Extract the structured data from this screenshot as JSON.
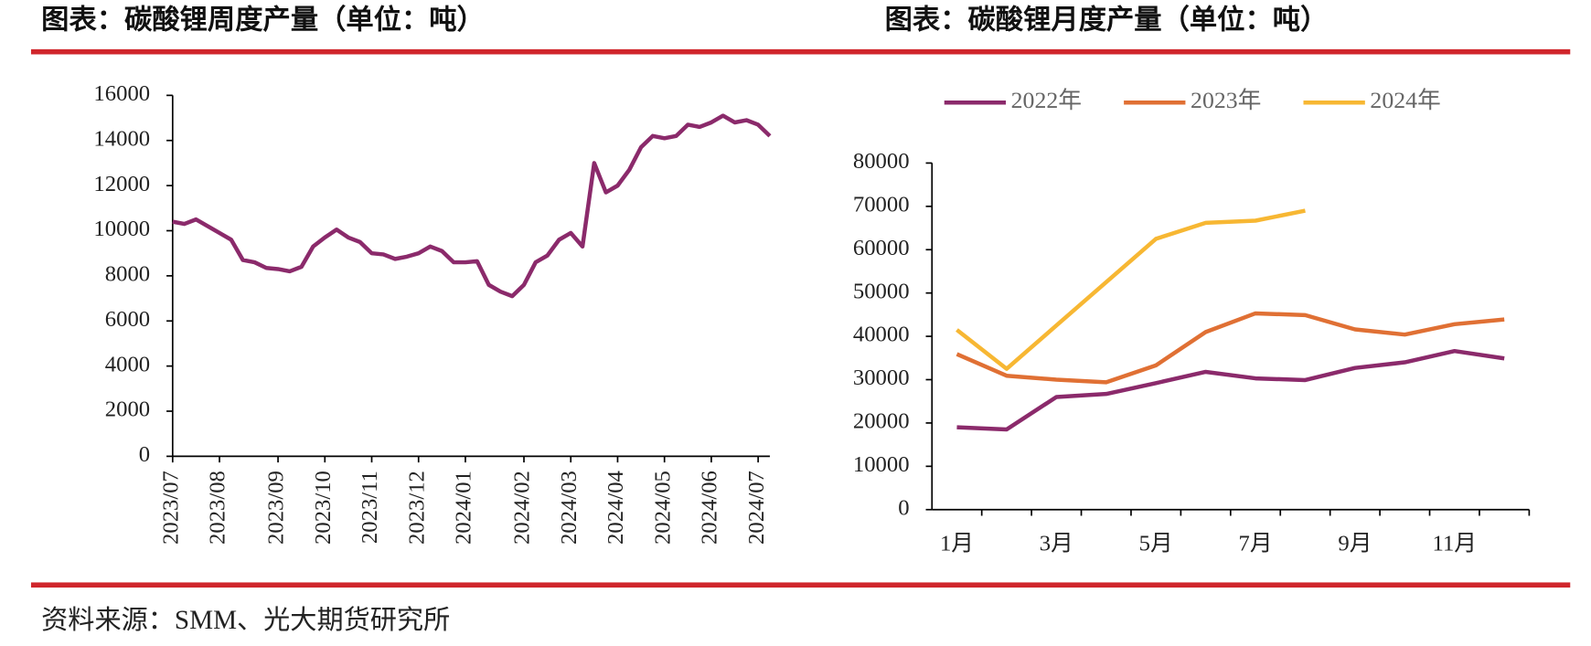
{
  "chart_data": [
    {
      "type": "line",
      "title": "图表：碳酸锂周度产量（单位：吨）",
      "categories": [
        "2023/07",
        null,
        null,
        null,
        "2023/08",
        null,
        null,
        null,
        null,
        "2023/09",
        null,
        null,
        null,
        "2023/10",
        null,
        null,
        null,
        "2023/11",
        null,
        null,
        null,
        "2023/12",
        null,
        null,
        null,
        "2024/01",
        null,
        null,
        null,
        null,
        "2024/02",
        null,
        null,
        null,
        "2024/03",
        null,
        null,
        null,
        "2024/04",
        null,
        null,
        null,
        "2024/05",
        null,
        null,
        null,
        "2024/06",
        null,
        null,
        null,
        "2024/07",
        null
      ],
      "series": [
        {
          "name": null,
          "color": "#8b2a6b",
          "values": [
            10400,
            10300,
            10500,
            10200,
            9900,
            9600,
            8700,
            8600,
            8350,
            8300,
            8200,
            8400,
            9300,
            9700,
            10050,
            9700,
            9500,
            9000,
            8950,
            8750,
            8850,
            9000,
            9300,
            9100,
            8600,
            8600,
            8650,
            7600,
            7300,
            7100,
            7600,
            8600,
            8900,
            9600,
            9900,
            9300,
            13000,
            11700,
            12000,
            12700,
            13700,
            14200,
            14100,
            14200,
            14700,
            14600,
            14800,
            15100,
            14800,
            14900,
            14700,
            14200
          ]
        }
      ],
      "ylim": [
        0,
        16000
      ],
      "yticks": [
        0,
        2000,
        4000,
        6000,
        8000,
        10000,
        12000,
        14000,
        16000
      ]
    },
    {
      "type": "line",
      "title": "图表：碳酸锂月度产量（单位：吨）",
      "categories": [
        "1月",
        null,
        "3月",
        null,
        "5月",
        null,
        "7月",
        null,
        "9月",
        null,
        "11月",
        null
      ],
      "series": [
        {
          "name": "2022年",
          "color": "#8b2a6b",
          "values": [
            19000,
            18500,
            26000,
            26700,
            29200,
            31800,
            30300,
            29900,
            32700,
            34000,
            36600,
            34900
          ]
        },
        {
          "name": "2023年",
          "color": "#e07034",
          "values": [
            35900,
            30900,
            30000,
            29400,
            33300,
            41000,
            45300,
            44900,
            41600,
            40400,
            42800,
            43900
          ]
        },
        {
          "name": "2024年",
          "color": "#f7b733",
          "values": [
            41500,
            32500,
            42500,
            52500,
            62500,
            66200,
            66700,
            69000,
            null,
            null,
            null,
            null
          ]
        }
      ],
      "ylim": [
        0,
        80000
      ],
      "yticks": [
        0,
        10000,
        20000,
        30000,
        40000,
        50000,
        60000,
        70000,
        80000
      ]
    }
  ],
  "source": "资料来源：SMM、光大期货研究所"
}
